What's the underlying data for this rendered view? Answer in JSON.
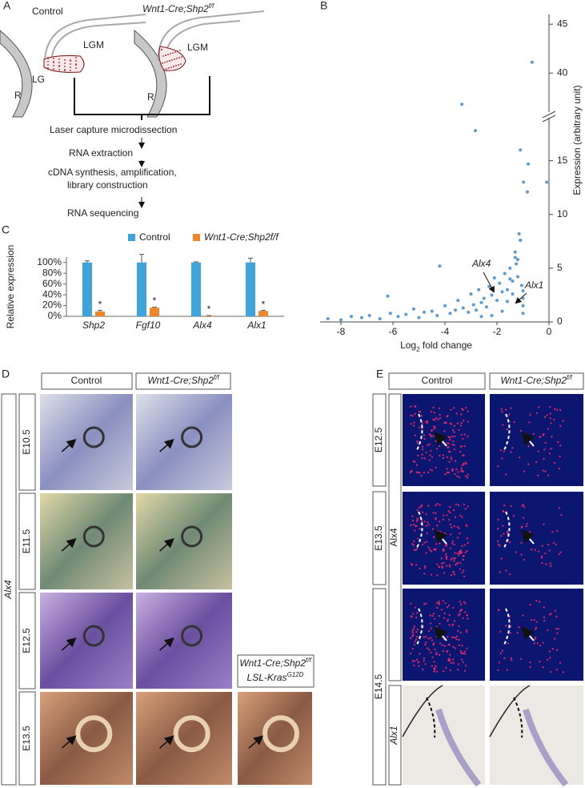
{
  "panel_a": {
    "label": "A",
    "control": "Control",
    "mutant": [
      "Wnt1-Cre;Shp2",
      "f/f"
    ],
    "left_labels": [
      "LGM",
      "LG",
      "R"
    ],
    "right_labels": [
      "LGM",
      "R"
    ],
    "steps": [
      "Laser capture microdissection",
      "RNA extraction",
      "cDNA synthesis, amplification,",
      "library construction",
      "RNA sequencing"
    ]
  },
  "chart_data": [
    {
      "type": "scatter",
      "x": [
        -3.35,
        -0.65
      ],
      "y": [
        36.8,
        41.1
      ],
      "color": "#5b9bd5",
      "xlim": [
        -8.8,
        0
      ],
      "ylim": [
        36,
        46
      ],
      "yticks": [
        40,
        45
      ]
    },
    {
      "type": "scatter",
      "panel": "B",
      "x": [
        -8.5,
        -8.0,
        -7.6,
        -7.2,
        -6.9,
        -6.5,
        -6.2,
        -6.1,
        -5.8,
        -5.5,
        -5.2,
        -5.0,
        -4.8,
        -4.5,
        -4.3,
        -4.2,
        -4.0,
        -3.8,
        -3.6,
        -3.5,
        -3.3,
        -3.1,
        -3.0,
        -2.9,
        -2.8,
        -2.7,
        -2.6,
        -2.5,
        -2.4,
        -2.3,
        -2.2,
        -2.1,
        -2.0,
        -1.9,
        -1.8,
        -1.7,
        -1.6,
        -1.5,
        -1.4,
        -1.3,
        -1.2,
        -1.1,
        -1.05,
        -1.0,
        -2.83,
        -1.1,
        -0.8,
        -0.83,
        -0.98,
        -0.09,
        -1.26,
        -1.1,
        -1.3,
        -1.5,
        -1.2,
        -1.15,
        -1.8,
        -2.2,
        -2.6,
        -1.6,
        -1.4,
        -1.0,
        -1.0,
        -1.0
      ],
      "y": [
        0.3,
        0.2,
        0.5,
        0.4,
        0.6,
        0.3,
        2.4,
        0.8,
        0.5,
        0.7,
        1.2,
        0.4,
        0.9,
        1.0,
        0.6,
        5.2,
        1.5,
        0.8,
        1.1,
        2.0,
        1.3,
        0.9,
        2.6,
        1.6,
        1.1,
        3.0,
        1.8,
        2.2,
        1.4,
        3.3,
        2.5,
        4.1,
        2.0,
        3.6,
        2.8,
        4.5,
        3.0,
        5.0,
        3.8,
        6.0,
        4.2,
        7.6,
        3.4,
        2.2,
        17.8,
        16.0,
        14.7,
        12.1,
        13.0,
        13.0,
        5.4,
        7.6,
        6.5,
        4.0,
        5.8,
        8.2,
        1.0,
        0.6,
        0.5,
        1.9,
        2.6,
        1.5,
        0.8,
        2.9
      ],
      "color": "#5b9bd5",
      "xlim": [
        -8.8,
        0
      ],
      "xticks": [
        -8,
        -6,
        -4,
        -2,
        0
      ],
      "ylim": [
        0,
        19
      ],
      "yticks": [
        0,
        5,
        10,
        15
      ],
      "x_label": [
        "Log",
        "2",
        " fold change"
      ],
      "y_label": "Expression (arbitrary unit)",
      "annotations": [
        "Alx4",
        "Alx1"
      ]
    },
    {
      "type": "bar",
      "panel": "C",
      "categories": [
        "Shp2",
        "Fgf10",
        "Alx4",
        "Alx1"
      ],
      "series": [
        {
          "name": "Control",
          "color": "#3fa3dc",
          "values": [
            100,
            100,
            100,
            100
          ],
          "errors": [
            3,
            15,
            1,
            8
          ]
        },
        {
          "name": "Wnt1-Cre;Shp2f/f",
          "color": "#f0862a",
          "values": [
            9,
            16,
            1,
            10
          ],
          "errors": [
            2,
            1,
            0.5,
            1
          ],
          "markers": [
            "*",
            "*",
            "*",
            "*"
          ]
        }
      ],
      "ylim": [
        0,
        110
      ],
      "yticks": [
        {
          "value": 0,
          "label": "0%"
        },
        {
          "value": 20,
          "label": "20%"
        },
        {
          "value": 40,
          "label": "40%"
        },
        {
          "value": 60,
          "label": "60%"
        },
        {
          "value": 80,
          "label": "80%"
        },
        {
          "value": 100,
          "label": "100%"
        }
      ],
      "y_label": "Relative expression"
    }
  ],
  "panel_d": {
    "label": "D",
    "gene": "Alx4",
    "control": "Control",
    "mutant": [
      "Wnt1-Cre;Shp2",
      "f/f"
    ],
    "mutant_kras": [
      [
        "Wnt1-Cre;Shp2",
        "f/f"
      ],
      [
        "LSL-Kras",
        "G12D"
      ]
    ],
    "rows": [
      "E10.5",
      "E11.5",
      "E12.5",
      "E13.5"
    ]
  },
  "panel_e": {
    "label": "E",
    "control": "Control",
    "mutant": [
      "Wnt1-Cre;Shp2",
      "f/f"
    ],
    "rows": [
      "E12.5",
      "E13.5",
      "E14.5"
    ],
    "genes": [
      "Alx4",
      "Alx1"
    ]
  }
}
